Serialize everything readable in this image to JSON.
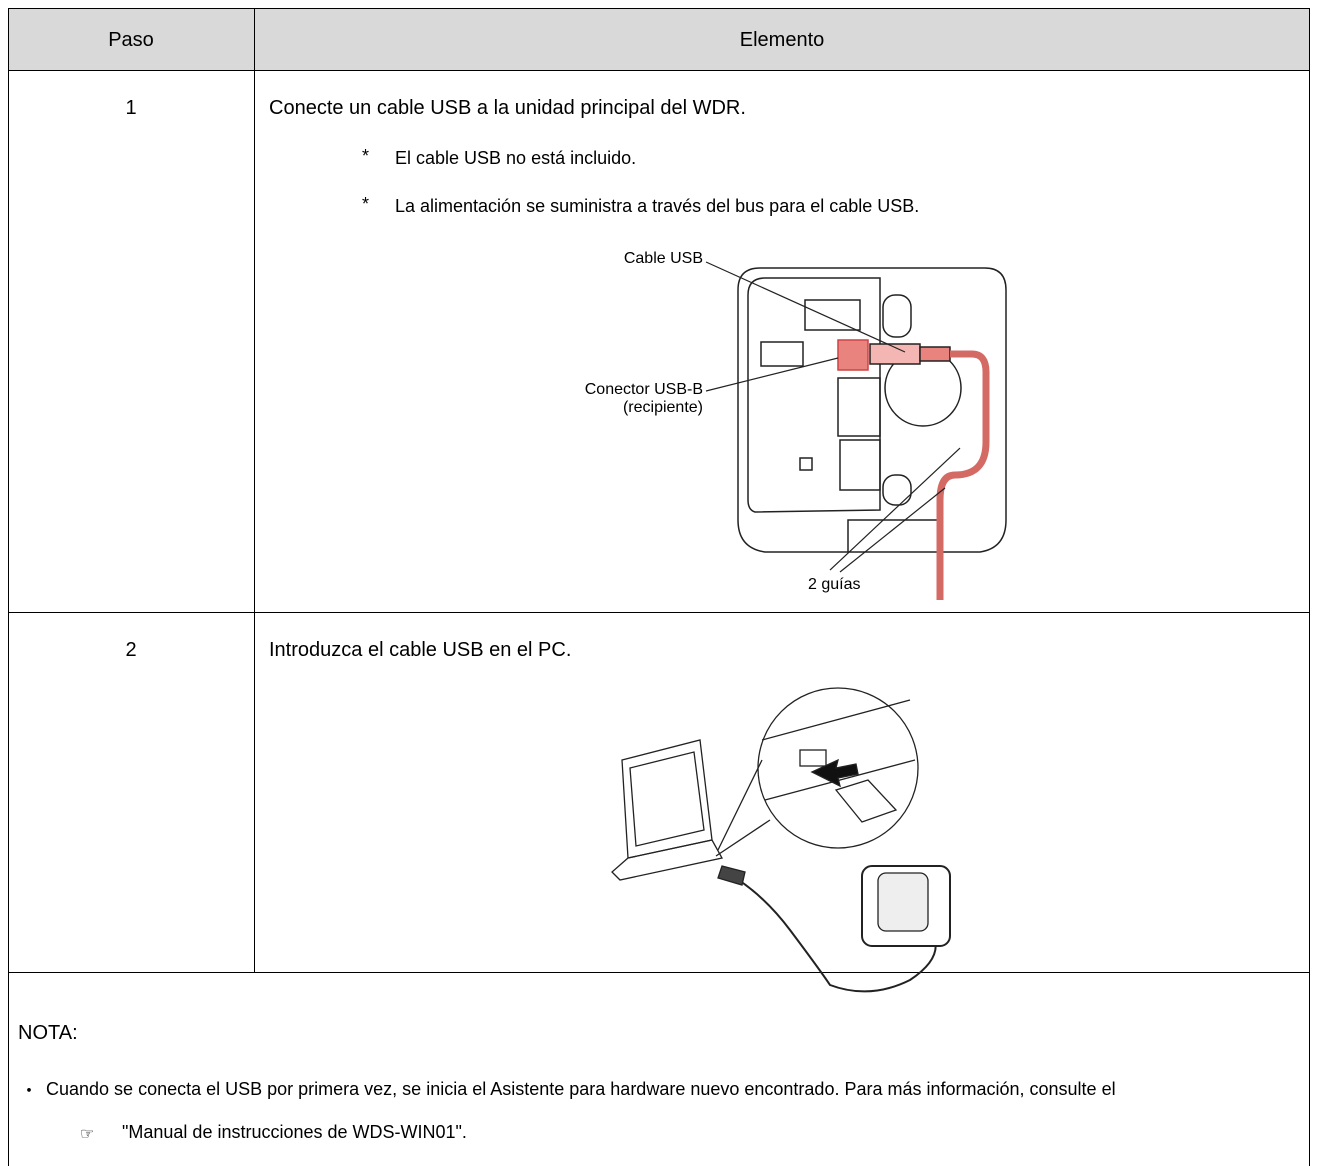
{
  "table": {
    "header": [
      "Paso",
      "Elemento"
    ],
    "rows": [
      {
        "step": "1",
        "text": "Conecte un cable USB a la unidad principal del WDR.",
        "notes": [
          {
            "marker": "*",
            "text": "El cable USB no está incluido."
          },
          {
            "marker": "*",
            "text": "La alimentación se suministra a través del bus para el cable USB."
          }
        ],
        "figure": {
          "labels": [
            "Cable USB",
            "Conector USB-B",
            "(recipiente)",
            "2 guías"
          ]
        }
      },
      {
        "step": "2",
        "text": "Introduzca el cable USB en el PC."
      }
    ]
  },
  "note": {
    "title": "NOTA:",
    "items": [
      {
        "marker": "・",
        "text": "Cuando se conecta el USB por primera vez, se inicia el Asistente para hardware nuevo encontrado. Para más información, consulte el",
        "ref_icon": "☞",
        "ref": "\"Manual de instrucciones de WDS-WIN01\"."
      }
    ]
  }
}
